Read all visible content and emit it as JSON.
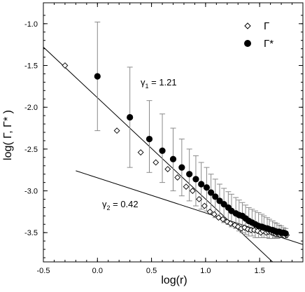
{
  "chart_data": {
    "type": "scatter",
    "xlabel": "log(r)",
    "ylabel": "log( Γ, Γ* )",
    "xlim": [
      -0.5,
      1.9
    ],
    "ylim": [
      -3.85,
      -0.75
    ],
    "xticks": [
      -0.5,
      0.0,
      0.5,
      1.0,
      1.5
    ],
    "xtick_labels": [
      "-0.5",
      "0.0",
      "0.5",
      "1.0",
      "1.5"
    ],
    "yticks": [
      -3.5,
      -3.0,
      -2.5,
      -2.0,
      -1.5,
      -1.0
    ],
    "ytick_labels": [
      "-3.5",
      "-3.0",
      "-2.5",
      "-2.0",
      "-1.5",
      "-1.0"
    ],
    "legend": {
      "placement": "top-right",
      "entries": [
        "Γ",
        "Γ*"
      ]
    },
    "series": [
      {
        "name": "Γ",
        "marker": "open-diamond",
        "x": [
          -0.3,
          0.18,
          0.4,
          0.54,
          0.65,
          0.74,
          0.82,
          0.88,
          0.94,
          0.99,
          1.04,
          1.08,
          1.12,
          1.16,
          1.2,
          1.23,
          1.27,
          1.3,
          1.33,
          1.36,
          1.39,
          1.42,
          1.45,
          1.48,
          1.51,
          1.53,
          1.56,
          1.58,
          1.61,
          1.63,
          1.65,
          1.67,
          1.69,
          1.71,
          1.73,
          1.75
        ],
        "y": [
          -1.5,
          -2.28,
          -2.54,
          -2.66,
          -2.74,
          -2.84,
          -2.95,
          -3.0,
          -3.1,
          -3.18,
          -3.25,
          -3.28,
          -3.32,
          -3.34,
          -3.37,
          -3.39,
          -3.41,
          -3.43,
          -3.45,
          -3.44,
          -3.46,
          -3.47,
          -3.47,
          -3.48,
          -3.5,
          -3.48,
          -3.5,
          -3.49,
          -3.5,
          -3.51,
          -3.52,
          -3.52,
          -3.53,
          -3.53,
          -3.54,
          -3.53
        ]
      },
      {
        "name": "Γ*",
        "marker": "filled-circle",
        "x": [
          0.0,
          0.3,
          0.48,
          0.6,
          0.7,
          0.78,
          0.85,
          0.91,
          0.96,
          1.01,
          1.05,
          1.09,
          1.13,
          1.17,
          1.21,
          1.24,
          1.28,
          1.31,
          1.34,
          1.37,
          1.4,
          1.43,
          1.46,
          1.49,
          1.52,
          1.54,
          1.57,
          1.59,
          1.62,
          1.64,
          1.66,
          1.68,
          1.7,
          1.72,
          1.74
        ],
        "y": [
          -1.63,
          -2.12,
          -2.38,
          -2.52,
          -2.62,
          -2.72,
          -2.8,
          -2.86,
          -2.92,
          -2.96,
          -3.02,
          -3.07,
          -3.12,
          -3.16,
          -3.2,
          -3.24,
          -3.27,
          -3.29,
          -3.3,
          -3.33,
          -3.36,
          -3.38,
          -3.4,
          -3.42,
          -3.43,
          -3.44,
          -3.45,
          -3.46,
          -3.47,
          -3.48,
          -3.49,
          -3.49,
          -3.5,
          -3.5,
          -3.51
        ],
        "error_upper": [
          -0.98,
          -1.52,
          -1.92,
          -2.08,
          -2.25,
          -2.38,
          -2.5,
          -2.58,
          -2.66,
          -2.72,
          -2.8,
          -2.86,
          -2.92,
          -2.97,
          -3.01,
          -3.04,
          -3.08,
          -3.11,
          -3.14,
          -3.17,
          -3.2,
          -3.22,
          -3.24,
          -3.26,
          -3.28,
          -3.3,
          -3.32,
          -3.34,
          -3.36,
          -3.38,
          -3.39,
          -3.41,
          -3.42,
          -3.44,
          -3.45
        ],
        "error_lower": [
          -2.28,
          -2.72,
          -2.78,
          -2.9,
          -3.0,
          -3.06,
          -3.12,
          -3.18,
          -3.22,
          -3.24,
          -3.28,
          -3.32,
          -3.34,
          -3.38,
          -3.4,
          -3.43,
          -3.45,
          -3.48,
          -3.5,
          -3.52,
          -3.54,
          -3.54,
          -3.56,
          -3.56,
          -3.56,
          -3.56,
          -3.56,
          -3.57,
          -3.57,
          -3.56,
          -3.57,
          -3.56,
          -3.56,
          -3.56,
          -3.56
        ]
      }
    ],
    "fit_lines": [
      {
        "label": "γ₁ = 1.21",
        "slope": -1.21,
        "x": [
          -0.5,
          1.9
        ],
        "y": [
          -1.28,
          -4.19
        ]
      },
      {
        "label": "γ₂ = 0.42",
        "slope": -0.42,
        "x": [
          -0.2,
          1.9
        ],
        "y": [
          -2.76,
          -3.642
        ]
      }
    ]
  },
  "legend": {
    "gamma_label": "Γ",
    "gamma_star_label": "Γ*"
  },
  "annotations": {
    "gamma1": {
      "symbol": "γ",
      "sub": "1",
      "text": " = 1.21"
    },
    "gamma2": {
      "symbol": "γ",
      "sub": "2",
      "text": " = 0.42"
    }
  },
  "axes": {
    "xlabel": "log(r)",
    "ylabel": "log( Γ, Γ* )"
  }
}
